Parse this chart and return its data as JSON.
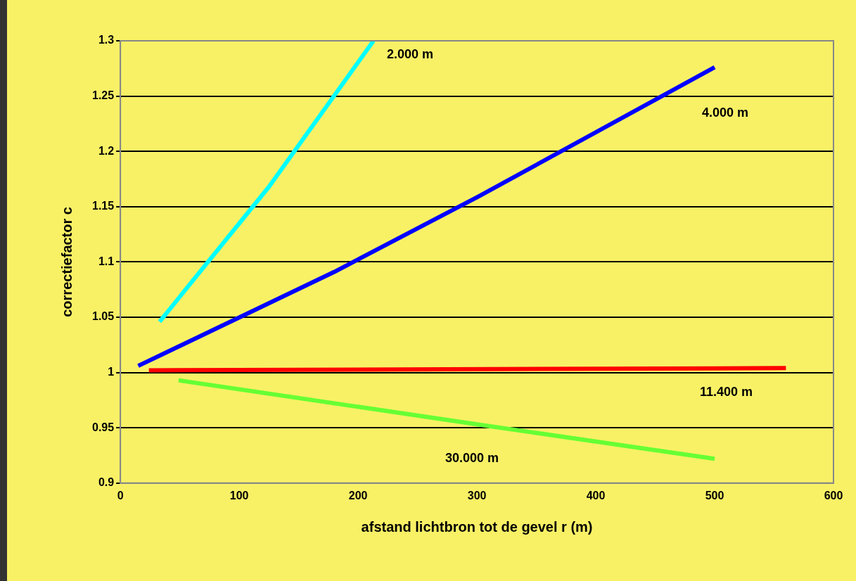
{
  "chart_data": {
    "type": "line",
    "xlabel": "afstand lichtbron tot de gevel r (m)",
    "ylabel": "correctiefactor c",
    "xlim": [
      0,
      600
    ],
    "xticks": [
      0,
      100,
      200,
      300,
      400,
      500,
      600
    ],
    "ylim": [
      0.9,
      1.3
    ],
    "yticks": [
      0.9,
      0.95,
      1,
      1.05,
      1.1,
      1.15,
      1.2,
      1.25,
      1.3
    ],
    "grid": "y",
    "marker": "none",
    "line_style": "solid",
    "series": [
      {
        "name": "2.000 m",
        "color": "#00ffff",
        "x": [
          33,
          125,
          213
        ],
        "values": [
          1.046,
          1.168,
          1.3
        ]
      },
      {
        "name": "4.000 m",
        "color": "#0000ff",
        "x": [
          15,
          180,
          301,
          500
        ],
        "values": [
          1.006,
          1.091,
          1.159,
          1.276
        ]
      },
      {
        "name": "11.400 m",
        "color": "#ff0000",
        "x": [
          24,
          560
        ],
        "values": [
          1.002,
          1.004
        ]
      },
      {
        "name": "30.000 m",
        "color": "#66ff33",
        "x": [
          49,
          301,
          500
        ],
        "values": [
          0.993,
          0.953,
          0.922
        ]
      }
    ]
  }
}
